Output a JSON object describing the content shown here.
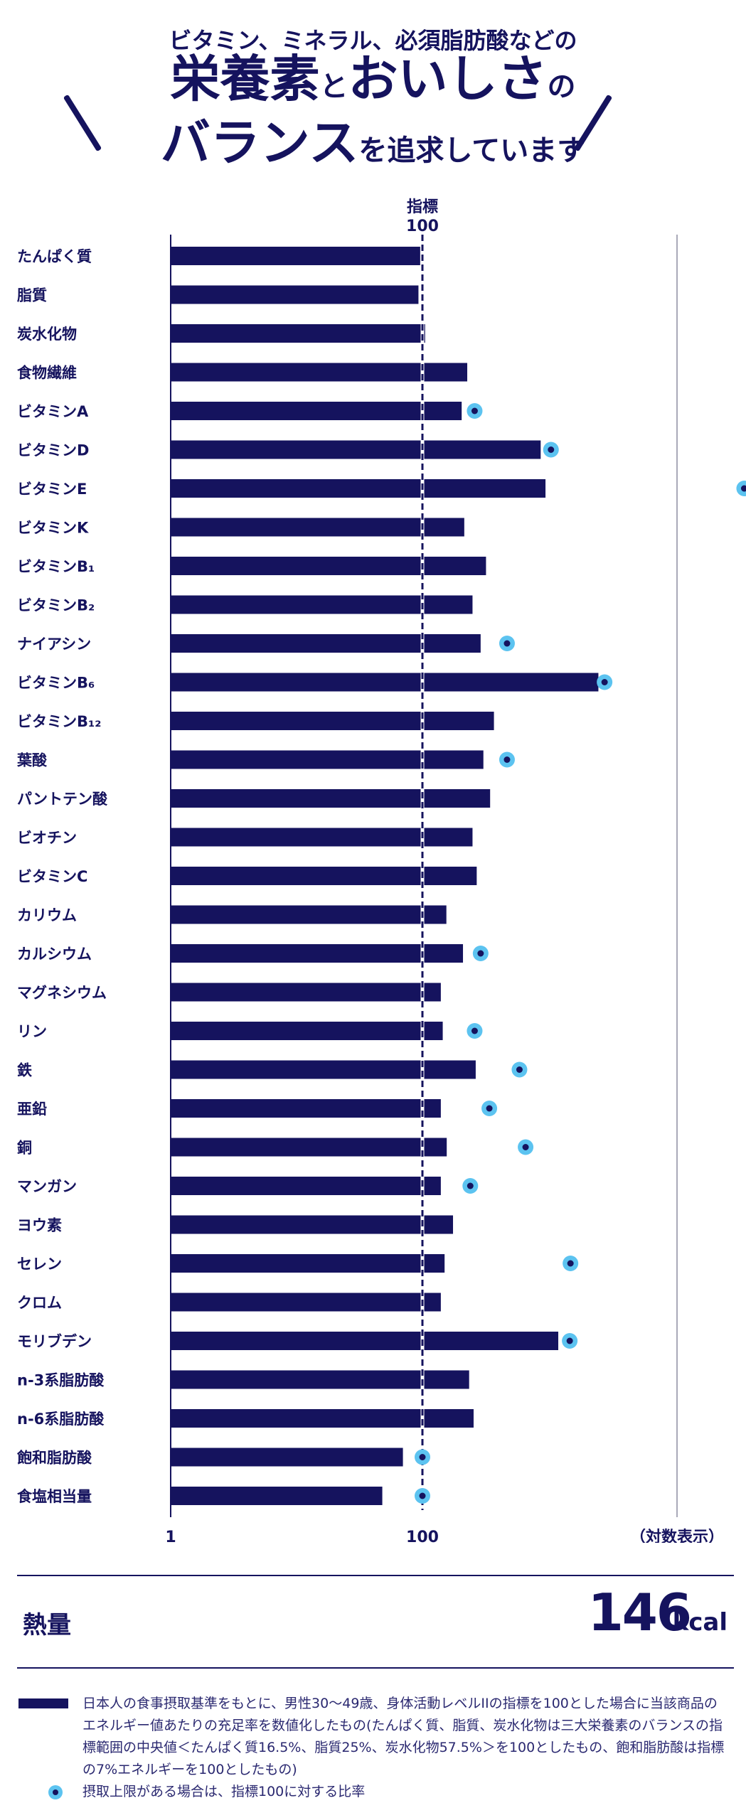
{
  "header": {
    "line1": "ビタミン、ミネラル、必須脂肪酸などの",
    "line2a": "栄養素",
    "line2b": "と",
    "line2c": "おいしさ",
    "line2d": "の",
    "line3a": "バランス",
    "line3b": "を追求しています"
  },
  "colors": {
    "bar": "#15135e",
    "dot_outer": "#5cc3f0",
    "dot_inner": "#15135e",
    "refline": "#15135e"
  },
  "chart_data": {
    "type": "bar",
    "orientation": "horizontal",
    "scale": "log",
    "xlim": [
      1,
      100000
    ],
    "reference": {
      "value": 100,
      "label_line1": "指標",
      "label_line2": "100"
    },
    "x_ticks": [
      {
        "value": 1,
        "label": "1"
      },
      {
        "value": 100,
        "label": "100"
      }
    ],
    "axis_note": "（対数表示）",
    "categories": [
      "たんぱく質",
      "脂質",
      "炭水化物",
      "食物繊維",
      "ビタミンA",
      "ビタミンD",
      "ビタミンE",
      "ビタミンK",
      "ビタミンB₁",
      "ビタミンB₂",
      "ナイアシン",
      "ビタミンB₆",
      "ビタミンB₁₂",
      "葉酸",
      "パントテン酸",
      "ビオチン",
      "ビタミンC",
      "カリウム",
      "カルシウム",
      "マグネシウム",
      "リン",
      "鉄",
      "亜鉛",
      "銅",
      "マンガン",
      "ヨウ素",
      "セレン",
      "クロム",
      "モリブデン",
      "n-3系脂肪酸",
      "n-6系脂肪酸",
      "飽和脂肪酸",
      "食塩相当量"
    ],
    "values": [
      96,
      93,
      105,
      227,
      205,
      870,
      950,
      215,
      320,
      250,
      290,
      2500,
      370,
      305,
      345,
      250,
      270,
      155,
      210,
      140,
      145,
      265,
      140,
      156,
      140,
      175,
      150,
      140,
      1200,
      235,
      255,
      70,
      48
    ],
    "upper_limit_ratio": [
      null,
      null,
      null,
      null,
      260,
      1050,
      null,
      null,
      null,
      null,
      470,
      2800,
      null,
      470,
      null,
      null,
      null,
      null,
      290,
      null,
      260,
      590,
      340,
      660,
      240,
      null,
      1500,
      null,
      1480,
      null,
      null,
      100,
      100
    ],
    "upper_limit_extra": [
      null,
      null,
      null,
      null,
      null,
      null,
      36000,
      null,
      null,
      null,
      null,
      null,
      null,
      null,
      null,
      null,
      null,
      null,
      null,
      null,
      null,
      null,
      null,
      null,
      null,
      null,
      null,
      null,
      null,
      null,
      null,
      null,
      null
    ]
  },
  "energy": {
    "label": "熱量",
    "value": "146",
    "unit": "kcal"
  },
  "notes": {
    "bar_note": "日本人の食事摂取基準をもとに、男性30〜49歳、身体活動レベルIIの指標を100とした場合に当該商品のエネルギー値あたりの充足率を数値化したもの(たんぱく質、脂質、炭水化物は三大栄養素のバランスの指標範囲の中央値＜たんぱく質16.5%、脂質25%、炭水化物57.5%＞を100としたもの、飽和脂肪酸は指標の7%エネルギーを100としたもの)",
    "dot_note": "摂取上限がある場合は、指標100に対する比率"
  }
}
